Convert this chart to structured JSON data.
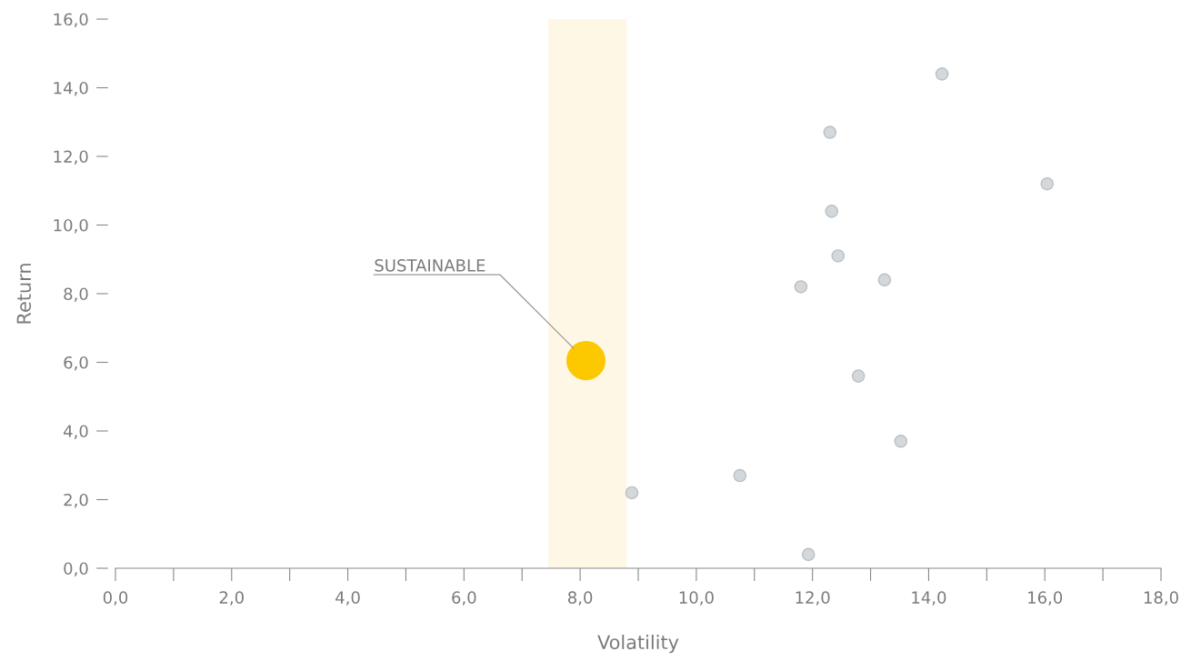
{
  "chart_data": {
    "type": "scatter",
    "xlabel": "Volatility",
    "ylabel": "Return",
    "series": [
      {
        "color": "#d4d8db",
        "x": [
          8.89,
          10.75,
          11.93,
          11.8,
          12.3,
          12.33,
          12.44,
          12.79,
          13.24,
          13.52,
          14.23,
          16.04
        ],
        "values": [
          2.2,
          2.7,
          0.4,
          8.2,
          12.7,
          10.4,
          9.1,
          5.6,
          8.4,
          3.7,
          14.4,
          11.2
        ]
      },
      {
        "name": "SUSTAINABLE",
        "color": "#fcc800",
        "x": [
          8.1
        ],
        "values": [
          6.05
        ]
      }
    ],
    "bands": [
      {
        "axis": "x",
        "from": 7.45,
        "to": 8.8,
        "color": "#fff7e6"
      }
    ],
    "xlim": [
      0,
      18
    ],
    "ylim": [
      0,
      16
    ],
    "xticks": [
      {
        "value": 0,
        "label": "0,0"
      },
      {
        "value": 1,
        "label": null
      },
      {
        "value": 2,
        "label": "2,0"
      },
      {
        "value": 3,
        "label": null
      },
      {
        "value": 4,
        "label": "4,0"
      },
      {
        "value": 5,
        "label": null
      },
      {
        "value": 6,
        "label": "6,0"
      },
      {
        "value": 7,
        "label": null
      },
      {
        "value": 8,
        "label": "8,0"
      },
      {
        "value": 9,
        "label": null
      },
      {
        "value": 10,
        "label": "10,0"
      },
      {
        "value": 11,
        "label": null
      },
      {
        "value": 12,
        "label": "12,0"
      },
      {
        "value": 13,
        "label": null
      },
      {
        "value": 14,
        "label": "14,0"
      },
      {
        "value": 15,
        "label": null
      },
      {
        "value": 16,
        "label": "16,0"
      },
      {
        "value": 17,
        "label": null
      },
      {
        "value": 18,
        "label": "18,0"
      }
    ],
    "yticks": [
      {
        "value": 0,
        "label": "0,0"
      },
      {
        "value": 2,
        "label": "2,0"
      },
      {
        "value": 4,
        "label": "4,0"
      },
      {
        "value": 6,
        "label": "6,0"
      },
      {
        "value": 8,
        "label": "8,0"
      },
      {
        "value": 10,
        "label": "10,0"
      },
      {
        "value": 12,
        "label": "12,0"
      },
      {
        "value": 14,
        "label": "14,0"
      },
      {
        "value": 16,
        "label": "16,0"
      }
    ],
    "grid": false,
    "legend": false,
    "marker": "circle"
  }
}
